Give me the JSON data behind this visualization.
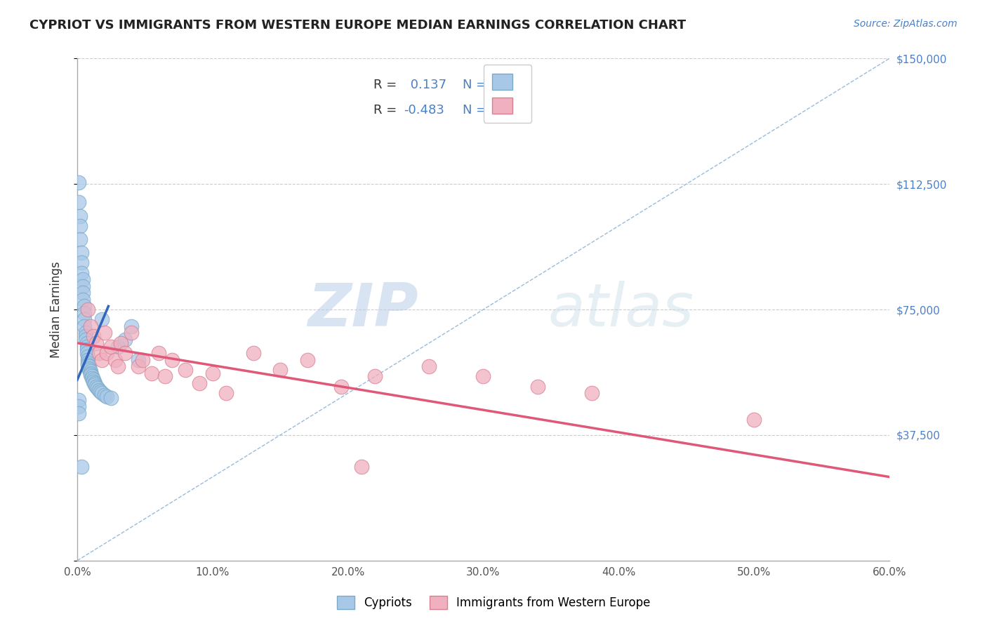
{
  "title": "CYPRIOT VS IMMIGRANTS FROM WESTERN EUROPE MEDIAN EARNINGS CORRELATION CHART",
  "source": "Source: ZipAtlas.com",
  "ylabel": "Median Earnings",
  "xlim": [
    0.0,
    0.6
  ],
  "ylim": [
    0,
    150000
  ],
  "yticks": [
    0,
    37500,
    75000,
    112500,
    150000
  ],
  "ytick_labels": [
    "",
    "$37,500",
    "$75,000",
    "$112,500",
    "$150,000"
  ],
  "xticks": [
    0.0,
    0.1,
    0.2,
    0.3,
    0.4,
    0.5,
    0.6
  ],
  "xtick_labels": [
    "0.0%",
    "10.0%",
    "20.0%",
    "30.0%",
    "40.0%",
    "50.0%",
    "60.0%"
  ],
  "background_color": "#ffffff",
  "grid_color": "#cccccc",
  "watermark_zip": "ZIP",
  "watermark_atlas": "atlas",
  "cypriot_color": "#a8c8e8",
  "cypriot_edge_color": "#7aaac8",
  "immigrant_color": "#f0b0c0",
  "immigrant_edge_color": "#d88090",
  "trend_blue": "#3366bb",
  "trend_pink": "#e05878",
  "ref_line_color": "#99bbdd",
  "title_color": "#222222",
  "source_color": "#4a80c8",
  "legend_color": "#4a80c8",
  "axis_color": "#aaaaaa",
  "blue_points_x": [
    0.001,
    0.001,
    0.002,
    0.002,
    0.002,
    0.003,
    0.003,
    0.003,
    0.004,
    0.004,
    0.004,
    0.004,
    0.005,
    0.005,
    0.005,
    0.005,
    0.006,
    0.006,
    0.006,
    0.007,
    0.007,
    0.007,
    0.007,
    0.008,
    0.008,
    0.008,
    0.008,
    0.009,
    0.009,
    0.009,
    0.01,
    0.01,
    0.01,
    0.011,
    0.011,
    0.012,
    0.012,
    0.013,
    0.013,
    0.014,
    0.015,
    0.016,
    0.017,
    0.018,
    0.02,
    0.022,
    0.025,
    0.03,
    0.035,
    0.04,
    0.001,
    0.001,
    0.001,
    0.045,
    0.018,
    0.003
  ],
  "blue_points_y": [
    113000,
    107000,
    103000,
    100000,
    96000,
    92000,
    89000,
    86000,
    84000,
    82000,
    80000,
    78000,
    76000,
    74000,
    72000,
    70000,
    68000,
    67000,
    66000,
    65000,
    64000,
    63000,
    62000,
    61000,
    60000,
    59000,
    58500,
    58000,
    57500,
    57000,
    56500,
    56000,
    55500,
    55000,
    54500,
    54000,
    53500,
    53000,
    52500,
    52000,
    51500,
    51000,
    50500,
    50000,
    49500,
    49000,
    48500,
    64000,
    66000,
    70000,
    48000,
    46000,
    44000,
    60000,
    72000,
    28000
  ],
  "pink_points_x": [
    0.008,
    0.01,
    0.012,
    0.014,
    0.016,
    0.018,
    0.02,
    0.022,
    0.025,
    0.028,
    0.03,
    0.032,
    0.035,
    0.04,
    0.045,
    0.048,
    0.055,
    0.06,
    0.065,
    0.07,
    0.08,
    0.09,
    0.1,
    0.11,
    0.13,
    0.15,
    0.17,
    0.195,
    0.22,
    0.26,
    0.3,
    0.34,
    0.38,
    0.5,
    0.21
  ],
  "pink_points_y": [
    75000,
    70000,
    67000,
    65000,
    62000,
    60000,
    68000,
    62000,
    64000,
    60000,
    58000,
    65000,
    62000,
    68000,
    58000,
    60000,
    56000,
    62000,
    55000,
    60000,
    57000,
    53000,
    56000,
    50000,
    62000,
    57000,
    60000,
    52000,
    55000,
    58000,
    55000,
    52000,
    50000,
    42000,
    28000
  ],
  "blue_trend_x0": 0.0,
  "blue_trend_y0": 54000,
  "blue_trend_x1": 0.023,
  "blue_trend_y1": 76000,
  "pink_trend_x0": 0.0,
  "pink_trend_y0": 65000,
  "pink_trend_x1": 0.6,
  "pink_trend_y1": 25000
}
